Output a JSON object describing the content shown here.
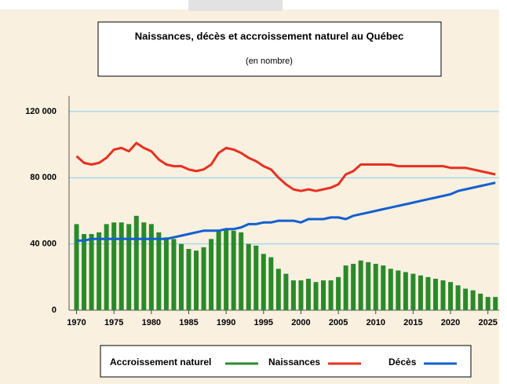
{
  "chart_data": {
    "type": "bar",
    "title": "Naissances, décès et accroissement naturel au Québec",
    "subtitle": "(en nombre)",
    "x": [
      1970,
      1971,
      1972,
      1973,
      1974,
      1975,
      1976,
      1977,
      1978,
      1979,
      1980,
      1981,
      1982,
      1983,
      1984,
      1985,
      1986,
      1987,
      1988,
      1989,
      1990,
      1991,
      1992,
      1993,
      1994,
      1995,
      1996,
      1997,
      1998,
      1999,
      2000,
      2001,
      2002,
      2003,
      2004,
      2005,
      2006,
      2007,
      2008,
      2009,
      2010,
      2011,
      2012,
      2013,
      2014,
      2015,
      2016,
      2017,
      2018,
      2019,
      2020,
      2021,
      2022,
      2023,
      2024,
      2025,
      2026
    ],
    "xlim": [
      1969,
      2026.5
    ],
    "xticks": [
      1970,
      1975,
      1980,
      1985,
      1990,
      1995,
      2000,
      2005,
      2010,
      2015,
      2020,
      2025
    ],
    "ylim": [
      0,
      120000
    ],
    "yticks": [
      0,
      {
        "value": 40000,
        "label": "40 000"
      },
      {
        "value": 80000,
        "label": "80 000"
      },
      {
        "value": 120000,
        "label": "120 000"
      }
    ],
    "grid": true,
    "series": [
      {
        "name": "Accroissement naturel",
        "type": "bar",
        "color": "#2a8a2a",
        "values": [
          52000,
          46000,
          46000,
          47000,
          52000,
          53000,
          53000,
          52000,
          57000,
          53000,
          52000,
          47000,
          44000,
          43000,
          40000,
          37000,
          36000,
          38000,
          43000,
          48000,
          49000,
          48000,
          47000,
          40000,
          39000,
          34000,
          32000,
          25000,
          22000,
          18000,
          18000,
          19000,
          17000,
          18000,
          18000,
          20000,
          27000,
          28000,
          30000,
          29000,
          28000,
          27000,
          25000,
          24000,
          23000,
          22000,
          21000,
          20000,
          19000,
          18000,
          17000,
          15000,
          13000,
          12000,
          10000,
          8000,
          8000
        ]
      },
      {
        "name": "Naissances",
        "type": "line",
        "color": "#e83020",
        "values": [
          93000,
          89000,
          88000,
          89000,
          92000,
          97000,
          98000,
          96000,
          101000,
          98000,
          96000,
          91000,
          88000,
          87000,
          87000,
          85000,
          84000,
          85000,
          88000,
          95000,
          98000,
          97000,
          95000,
          92000,
          90000,
          87000,
          85000,
          80000,
          76000,
          73000,
          72000,
          73000,
          72000,
          73000,
          74000,
          76000,
          82000,
          84000,
          88000,
          88000,
          88000,
          88000,
          88000,
          87000,
          87000,
          87000,
          87000,
          87000,
          87000,
          87000,
          86000,
          86000,
          86000,
          85000,
          84000,
          83000,
          82000
        ]
      },
      {
        "name": "Décès",
        "type": "line",
        "color": "#1060d0",
        "values": [
          42000,
          42000,
          43000,
          43000,
          43000,
          43000,
          43000,
          43000,
          43000,
          43000,
          43000,
          43000,
          43000,
          44000,
          45000,
          46000,
          47000,
          48000,
          48000,
          48000,
          49000,
          49000,
          50000,
          52000,
          52000,
          53000,
          53000,
          54000,
          54000,
          54000,
          53000,
          55000,
          55000,
          55000,
          56000,
          56000,
          55000,
          57000,
          58000,
          59000,
          60000,
          61000,
          62000,
          63000,
          64000,
          65000,
          66000,
          67000,
          68000,
          69000,
          70000,
          72000,
          73000,
          74000,
          75000,
          76000,
          77000
        ]
      }
    ]
  }
}
